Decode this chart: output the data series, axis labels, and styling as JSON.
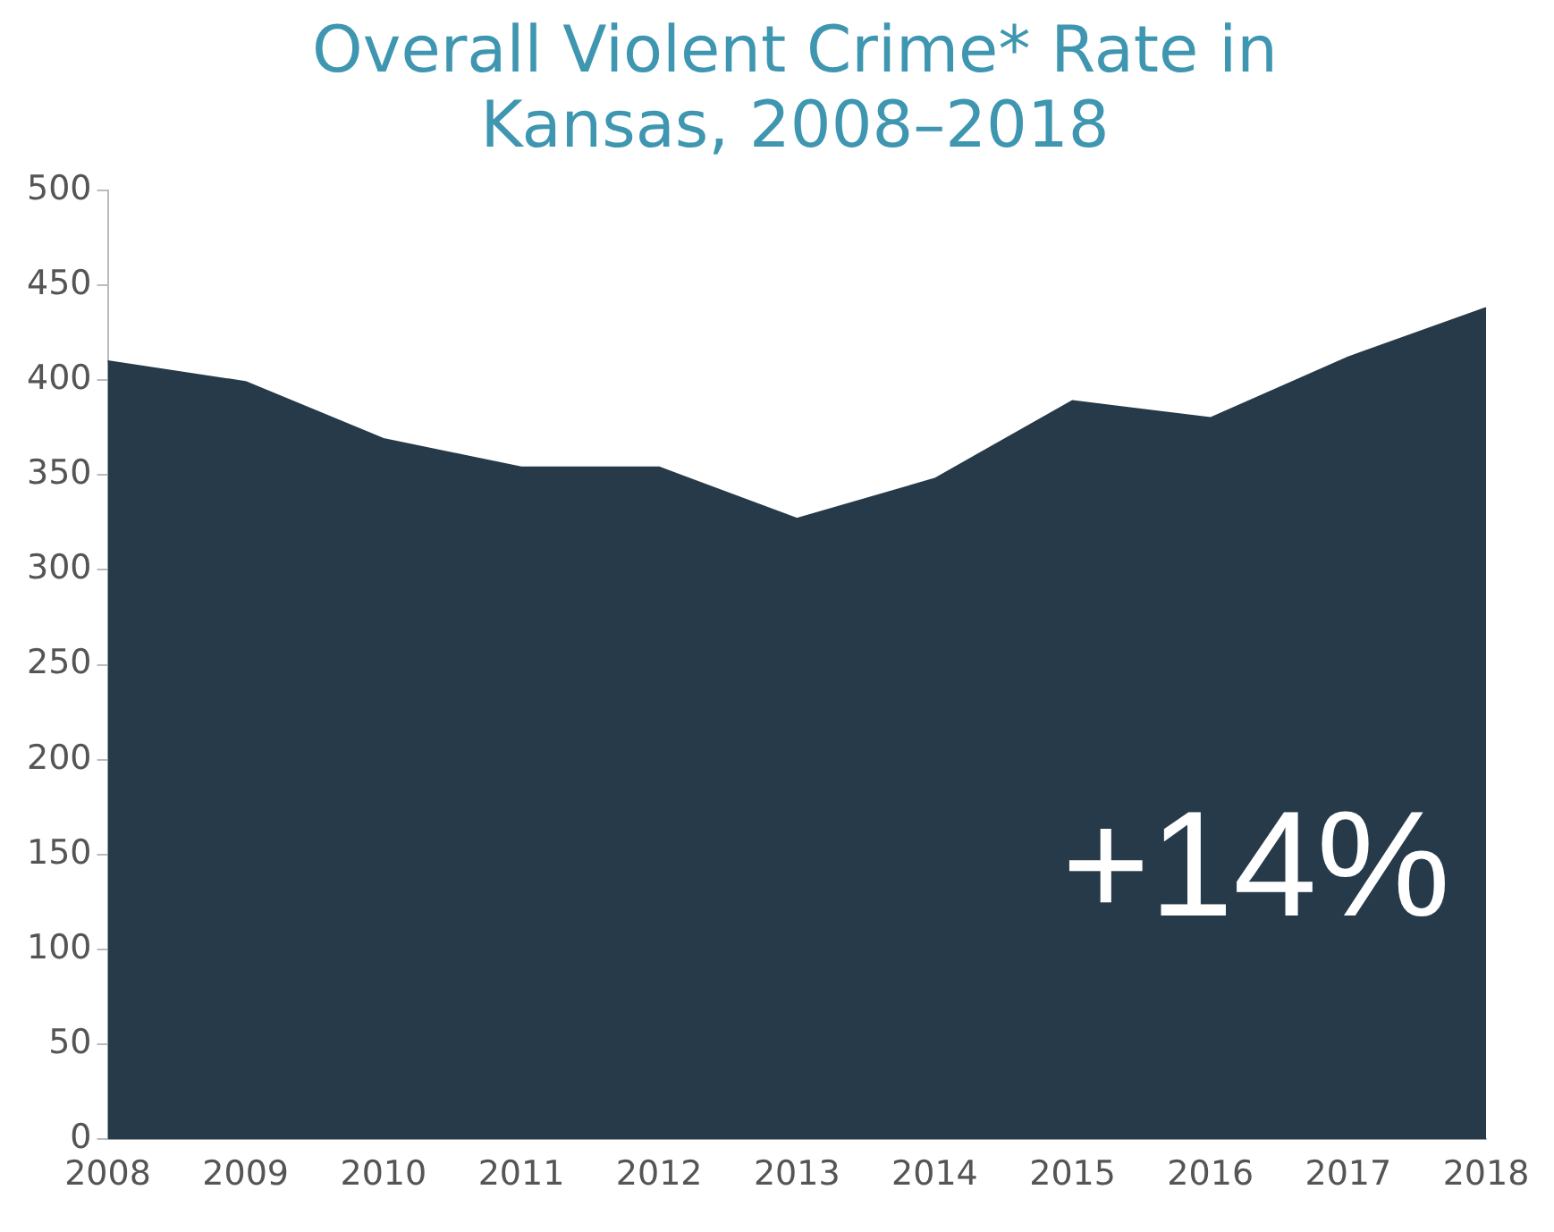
{
  "chart_data": {
    "type": "area",
    "title": "Overall Violent Crime* Rate in Kansas, 2008–2018",
    "categories": [
      "2008",
      "2009",
      "2010",
      "2011",
      "2012",
      "2013",
      "2014",
      "2015",
      "2016",
      "2017",
      "2018"
    ],
    "series": [
      {
        "color": "#263a4a",
        "values": [
          410,
          399,
          369,
          354,
          354,
          327,
          348,
          389,
          380,
          412,
          438
        ]
      }
    ],
    "ylim": [
      0,
      500
    ],
    "yticks": [
      0,
      50,
      100,
      150,
      200,
      250,
      300,
      350,
      400,
      450,
      500
    ],
    "grid": false,
    "legend": false,
    "annotations": [
      "+14%"
    ]
  }
}
